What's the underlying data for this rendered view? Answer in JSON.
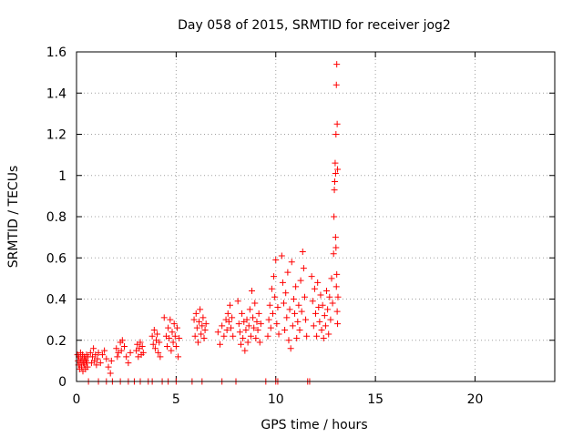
{
  "chart_data": {
    "type": "scatter",
    "title": "Day 058 of 2015, SRMTID for receiver jog2",
    "xlabel": "GPS time / hours",
    "ylabel": "SRMTID / TECUs",
    "xlim": [
      0,
      24
    ],
    "ylim": [
      0,
      1.6
    ],
    "xticks": [
      0,
      5,
      10,
      15,
      20
    ],
    "xtick_labels": [
      "0",
      "5",
      "10",
      "15",
      "20"
    ],
    "yticks": [
      0,
      0.2,
      0.4,
      0.6,
      0.8,
      1.0,
      1.2,
      1.4,
      1.6
    ],
    "ytick_labels": [
      "0",
      "0.2",
      "0.4",
      "0.6",
      "0.8",
      "1",
      "1.2",
      "1.4",
      "1.6"
    ],
    "grid": true,
    "marker": "+",
    "color": "#ff0000",
    "series": [
      {
        "name": "SRMTID",
        "points": [
          [
            0.05,
            0.13
          ],
          [
            0.08,
            0.1
          ],
          [
            0.1,
            0.08
          ],
          [
            0.12,
            0.12
          ],
          [
            0.15,
            0.06
          ],
          [
            0.18,
            0.09
          ],
          [
            0.2,
            0.14
          ],
          [
            0.22,
            0.11
          ],
          [
            0.25,
            0.07
          ],
          [
            0.28,
            0.1
          ],
          [
            0.3,
            0.13
          ],
          [
            0.32,
            0.05
          ],
          [
            0.35,
            0.09
          ],
          [
            0.38,
            0.12
          ],
          [
            0.4,
            0.08
          ],
          [
            0.42,
            0.11
          ],
          [
            0.45,
            0.06
          ],
          [
            0.48,
            0.1
          ],
          [
            0.5,
            0.13
          ],
          [
            0.52,
            0.09
          ],
          [
            0.55,
            0.07
          ],
          [
            0.58,
            0.12
          ],
          [
            0.7,
            0.14
          ],
          [
            0.75,
            0.09
          ],
          [
            0.8,
            0.12
          ],
          [
            0.85,
            0.16
          ],
          [
            0.9,
            0.1
          ],
          [
            0.95,
            0.13
          ],
          [
            1.0,
            0.08
          ],
          [
            1.05,
            0.11
          ],
          [
            1.1,
            0.14
          ],
          [
            1.2,
            0.09
          ],
          [
            1.3,
            0.13
          ],
          [
            1.4,
            0.15
          ],
          [
            1.5,
            0.11
          ],
          [
            1.6,
            0.07
          ],
          [
            1.7,
            0.04
          ],
          [
            1.75,
            0.1
          ],
          [
            2.0,
            0.16
          ],
          [
            2.05,
            0.12
          ],
          [
            2.1,
            0.14
          ],
          [
            2.2,
            0.19
          ],
          [
            2.25,
            0.15
          ],
          [
            2.3,
            0.2
          ],
          [
            2.4,
            0.17
          ],
          [
            2.5,
            0.12
          ],
          [
            2.6,
            0.09
          ],
          [
            2.7,
            0.14
          ],
          [
            3.0,
            0.15
          ],
          [
            3.05,
            0.18
          ],
          [
            3.1,
            0.12
          ],
          [
            3.15,
            0.16
          ],
          [
            3.2,
            0.19
          ],
          [
            3.25,
            0.13
          ],
          [
            3.3,
            0.17
          ],
          [
            3.35,
            0.14
          ],
          [
            3.8,
            0.22
          ],
          [
            3.85,
            0.18
          ],
          [
            3.9,
            0.25
          ],
          [
            3.95,
            0.16
          ],
          [
            4.0,
            0.2
          ],
          [
            4.05,
            0.23
          ],
          [
            4.1,
            0.14
          ],
          [
            4.15,
            0.19
          ],
          [
            4.2,
            0.12
          ],
          [
            4.4,
            0.31
          ],
          [
            4.5,
            0.22
          ],
          [
            4.55,
            0.17
          ],
          [
            4.6,
            0.26
          ],
          [
            4.65,
            0.21
          ],
          [
            4.7,
            0.3
          ],
          [
            4.75,
            0.15
          ],
          [
            4.8,
            0.24
          ],
          [
            4.85,
            0.19
          ],
          [
            4.9,
            0.28
          ],
          [
            4.95,
            0.22
          ],
          [
            5.0,
            0.17
          ],
          [
            5.05,
            0.26
          ],
          [
            5.1,
            0.12
          ],
          [
            5.15,
            0.21
          ],
          [
            5.9,
            0.3
          ],
          [
            5.95,
            0.22
          ],
          [
            6.0,
            0.33
          ],
          [
            6.05,
            0.26
          ],
          [
            6.1,
            0.19
          ],
          [
            6.15,
            0.29
          ],
          [
            6.2,
            0.35
          ],
          [
            6.25,
            0.23
          ],
          [
            6.3,
            0.27
          ],
          [
            6.35,
            0.31
          ],
          [
            6.4,
            0.21
          ],
          [
            6.45,
            0.25
          ],
          [
            6.5,
            0.28
          ],
          [
            7.1,
            0.24
          ],
          [
            7.2,
            0.18
          ],
          [
            7.3,
            0.27
          ],
          [
            7.4,
            0.22
          ],
          [
            7.5,
            0.3
          ],
          [
            7.55,
            0.25
          ],
          [
            7.6,
            0.33
          ],
          [
            7.65,
            0.29
          ],
          [
            7.7,
            0.37
          ],
          [
            7.75,
            0.26
          ],
          [
            7.8,
            0.31
          ],
          [
            7.85,
            0.22
          ],
          [
            8.1,
            0.39
          ],
          [
            8.15,
            0.28
          ],
          [
            8.2,
            0.24
          ],
          [
            8.25,
            0.18
          ],
          [
            8.3,
            0.33
          ],
          [
            8.35,
            0.21
          ],
          [
            8.4,
            0.29
          ],
          [
            8.45,
            0.15
          ],
          [
            8.5,
            0.25
          ],
          [
            8.55,
            0.3
          ],
          [
            8.6,
            0.19
          ],
          [
            8.65,
            0.27
          ],
          [
            8.7,
            0.35
          ],
          [
            8.75,
            0.22
          ],
          [
            8.8,
            0.44
          ],
          [
            8.85,
            0.31
          ],
          [
            8.9,
            0.26
          ],
          [
            8.95,
            0.38
          ],
          [
            9.0,
            0.21
          ],
          [
            9.05,
            0.29
          ],
          [
            9.1,
            0.25
          ],
          [
            9.15,
            0.33
          ],
          [
            9.2,
            0.19
          ],
          [
            9.25,
            0.28
          ],
          [
            9.6,
            0.22
          ],
          [
            9.65,
            0.3
          ],
          [
            9.7,
            0.37
          ],
          [
            9.75,
            0.26
          ],
          [
            9.8,
            0.45
          ],
          [
            9.85,
            0.33
          ],
          [
            9.9,
            0.51
          ],
          [
            9.95,
            0.41
          ],
          [
            10.0,
            0.59
          ],
          [
            10.05,
            0.28
          ],
          [
            10.1,
            0.36
          ],
          [
            10.15,
            0.23
          ],
          [
            10.3,
            0.61
          ],
          [
            10.35,
            0.48
          ],
          [
            10.4,
            0.38
          ],
          [
            10.45,
            0.25
          ],
          [
            10.5,
            0.43
          ],
          [
            10.55,
            0.31
          ],
          [
            10.6,
            0.53
          ],
          [
            10.65,
            0.2
          ],
          [
            10.7,
            0.35
          ],
          [
            10.75,
            0.16
          ],
          [
            10.8,
            0.58
          ],
          [
            10.85,
            0.27
          ],
          [
            10.9,
            0.4
          ],
          [
            10.95,
            0.33
          ],
          [
            11.0,
            0.46
          ],
          [
            11.05,
            0.21
          ],
          [
            11.1,
            0.29
          ],
          [
            11.15,
            0.37
          ],
          [
            11.2,
            0.25
          ],
          [
            11.25,
            0.49
          ],
          [
            11.3,
            0.34
          ],
          [
            11.35,
            0.63
          ],
          [
            11.4,
            0.55
          ],
          [
            11.45,
            0.41
          ],
          [
            11.5,
            0.3
          ],
          [
            11.55,
            0.22
          ],
          [
            11.8,
            0.51
          ],
          [
            11.85,
            0.39
          ],
          [
            11.9,
            0.27
          ],
          [
            11.95,
            0.45
          ],
          [
            12.0,
            0.33
          ],
          [
            12.05,
            0.22
          ],
          [
            12.1,
            0.48
          ],
          [
            12.15,
            0.36
          ],
          [
            12.2,
            0.29
          ],
          [
            12.25,
            0.42
          ],
          [
            12.3,
            0.25
          ],
          [
            12.35,
            0.37
          ],
          [
            12.4,
            0.21
          ],
          [
            12.45,
            0.32
          ],
          [
            12.5,
            0.27
          ],
          [
            12.55,
            0.44
          ],
          [
            12.6,
            0.35
          ],
          [
            12.65,
            0.23
          ],
          [
            12.7,
            0.41
          ],
          [
            12.75,
            0.3
          ],
          [
            12.8,
            0.5
          ],
          [
            12.85,
            0.38
          ],
          [
            12.9,
            0.62
          ],
          [
            12.92,
            0.8
          ],
          [
            12.94,
            0.93
          ],
          [
            12.96,
            0.97
          ],
          [
            12.98,
            1.06
          ],
          [
            13.0,
            1.01
          ],
          [
            13.02,
            1.2
          ],
          [
            13.04,
            1.44
          ],
          [
            13.06,
            1.54
          ],
          [
            13.08,
            1.25
          ],
          [
            13.1,
            1.03
          ],
          [
            13.0,
            0.7
          ],
          [
            13.02,
            0.65
          ],
          [
            13.04,
            0.46
          ],
          [
            13.06,
            0.52
          ],
          [
            13.08,
            0.34
          ],
          [
            13.1,
            0.28
          ],
          [
            13.12,
            0.41
          ],
          [
            0.6,
            0.0
          ],
          [
            1.1,
            0.0
          ],
          [
            1.5,
            0.0
          ],
          [
            1.8,
            0.0
          ],
          [
            2.2,
            0.0
          ],
          [
            2.6,
            0.0
          ],
          [
            2.9,
            0.0
          ],
          [
            3.2,
            0.0
          ],
          [
            3.6,
            0.0
          ],
          [
            3.8,
            0.0
          ],
          [
            4.3,
            0.0
          ],
          [
            4.6,
            0.0
          ],
          [
            5.0,
            0.0
          ],
          [
            5.8,
            0.0
          ],
          [
            6.3,
            0.0
          ],
          [
            7.3,
            0.0
          ],
          [
            8.0,
            0.0
          ],
          [
            9.5,
            0.0
          ],
          [
            10.0,
            0.0
          ],
          [
            10.1,
            0.0
          ],
          [
            11.6,
            0.0
          ],
          [
            11.7,
            0.0
          ]
        ]
      }
    ]
  }
}
